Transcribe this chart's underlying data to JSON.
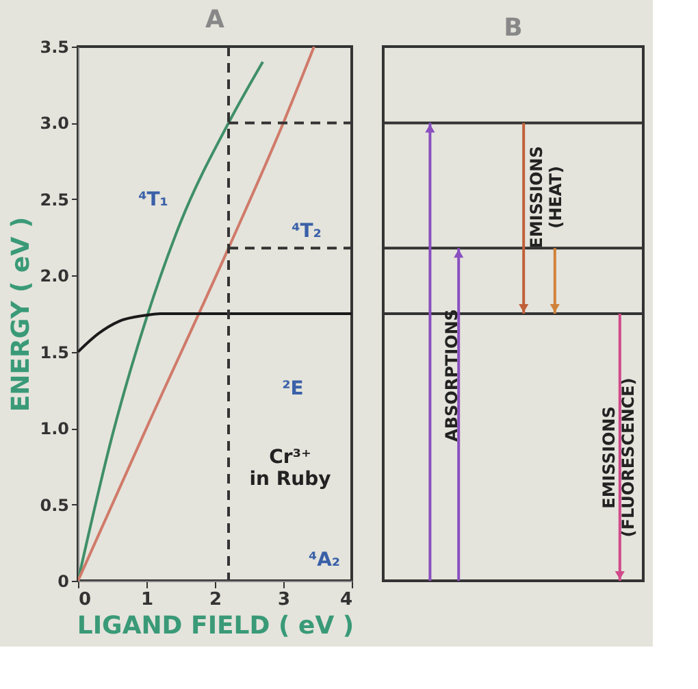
{
  "chart_data": [
    {
      "type": "line",
      "title": "A",
      "xlabel": "LIGAND FIELD ( eV )",
      "ylabel": "ENERGY ( eV )",
      "xlim": [
        0,
        4
      ],
      "xticks": [
        0,
        1,
        2,
        3,
        4
      ],
      "ylim": [
        0,
        3.5
      ],
      "yticks": [
        {
          "value": 0,
          "label": "0"
        },
        {
          "value": 0.5,
          "label": "0.5"
        },
        {
          "value": 1,
          "label": "1.0"
        },
        {
          "value": 1.5,
          "label": "1.5"
        },
        {
          "value": 2,
          "label": "2.0"
        },
        {
          "value": 2.5,
          "label": "2.5"
        },
        {
          "value": 3,
          "label": "3.0"
        },
        {
          "value": 3.5,
          "label": "3.5"
        }
      ],
      "grid": false,
      "series": [
        {
          "color": "#3f8f68",
          "x": [
            0,
            0.5,
            1.0,
            1.5,
            2.2,
            2.7
          ],
          "values": [
            0,
            0.95,
            1.72,
            2.35,
            3.0,
            3.4
          ]
        },
        {
          "color": "#d07a6a",
          "x": [
            0,
            1,
            2.2,
            3,
            3.45
          ],
          "values": [
            0,
            1,
            2.18,
            3.0,
            3.5
          ]
        },
        {
          "color": "#1a1a1a",
          "x": [
            0,
            0.3,
            0.6,
            1.0,
            1.2,
            4
          ],
          "values": [
            1.5,
            1.62,
            1.7,
            1.74,
            1.75,
            1.75
          ]
        },
        {
          "color": "#333333",
          "line_style": "dashed",
          "x": [
            2.2,
            4
          ],
          "values": [
            3.0,
            3.0
          ]
        },
        {
          "color": "#333333",
          "line_style": "dashed",
          "x": [
            2.2,
            4
          ],
          "values": [
            2.18,
            2.18
          ]
        }
      ],
      "ref_lines": [
        {
          "axis": "x",
          "value": 2.2,
          "color": "#333333",
          "line_style": "dashed"
        }
      ],
      "annotations": [
        "⁴T₁",
        "⁴T₂",
        "²E",
        "Cr³⁺\nin Ruby",
        "⁴A₂"
      ]
    },
    {
      "type": "other",
      "title": "B",
      "colors": [
        "#8a4fc0",
        "#c0603a",
        "#d0823a",
        "#d04a8a"
      ],
      "annotations": [
        "ABSORPTIONS",
        "EMISSIONS\n(HEAT)",
        "EMISSIONS\n(FLUORESCENCE)"
      ]
    }
  ]
}
